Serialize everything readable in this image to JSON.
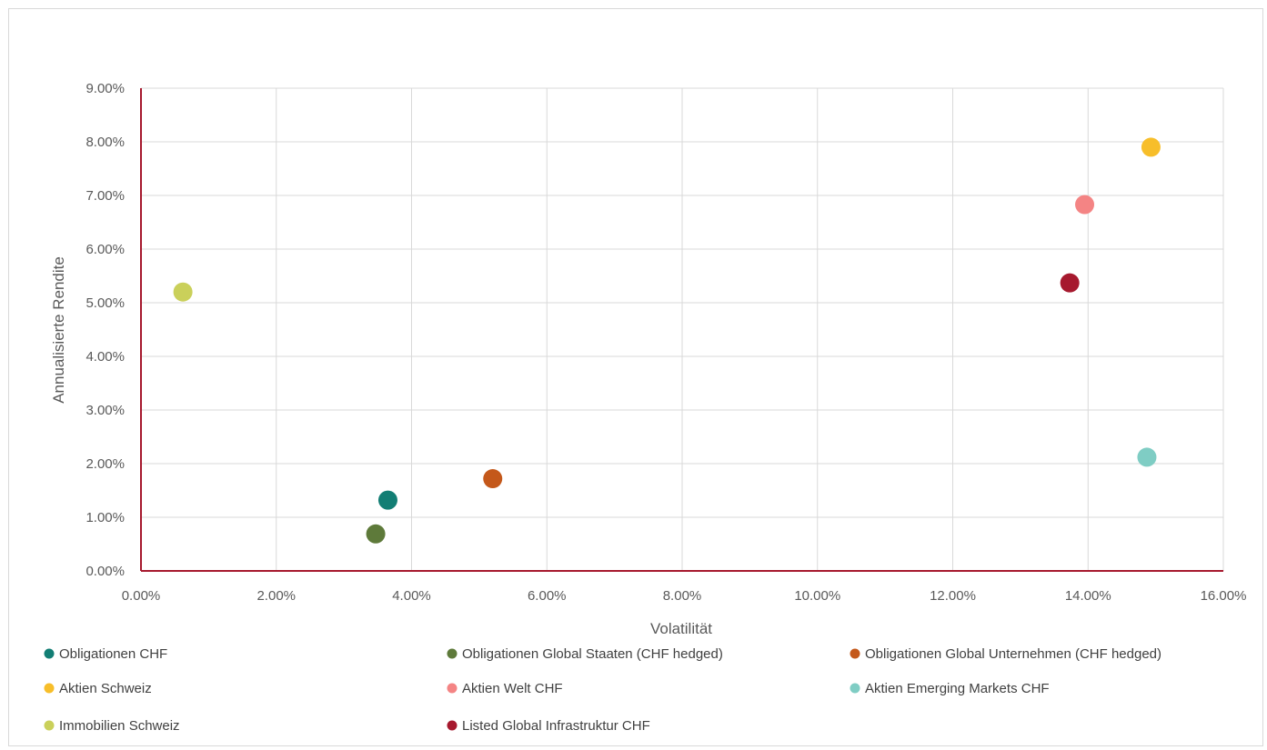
{
  "chart_data": {
    "type": "scatter",
    "xlabel": "Volatilität",
    "ylabel": "Annualisierte Rendite",
    "xlim": [
      0,
      0.16
    ],
    "ylim": [
      0,
      0.09
    ],
    "x_ticks": [
      "0.00%",
      "2.00%",
      "4.00%",
      "6.00%",
      "8.00%",
      "10.00%",
      "12.00%",
      "14.00%",
      "16.00%"
    ],
    "y_ticks": [
      "0.00%",
      "1.00%",
      "2.00%",
      "3.00%",
      "4.00%",
      "5.00%",
      "6.00%",
      "7.00%",
      "8.00%",
      "9.00%"
    ],
    "grid": true,
    "legend_position": "bottom",
    "axis_color": "#A6192E",
    "series": [
      {
        "name": "Obligationen CHF",
        "color": "#127E74",
        "x": 0.0365,
        "y": 0.0132
      },
      {
        "name": "Obligationen Global Staaten (CHF hedged)",
        "color": "#5E7A3A",
        "x": 0.0347,
        "y": 0.0069
      },
      {
        "name": "Obligationen Global Unternehmen (CHF hedged)",
        "color": "#C4581A",
        "x": 0.052,
        "y": 0.0172
      },
      {
        "name": "Aktien Schweiz",
        "color": "#F7BE2A",
        "x": 0.1493,
        "y": 0.079
      },
      {
        "name": "Aktien Welt CHF",
        "color": "#F48484",
        "x": 0.1395,
        "y": 0.0683
      },
      {
        "name": "Aktien Emerging Markets CHF",
        "color": "#7FCDC4",
        "x": 0.1487,
        "y": 0.0212
      },
      {
        "name": "Immobilien Schweiz",
        "color": "#CAD05A",
        "x": 0.0062,
        "y": 0.052
      },
      {
        "name": "Listed Global Infrastruktur CHF",
        "color": "#A6192E",
        "x": 0.1373,
        "y": 0.0537
      }
    ]
  }
}
